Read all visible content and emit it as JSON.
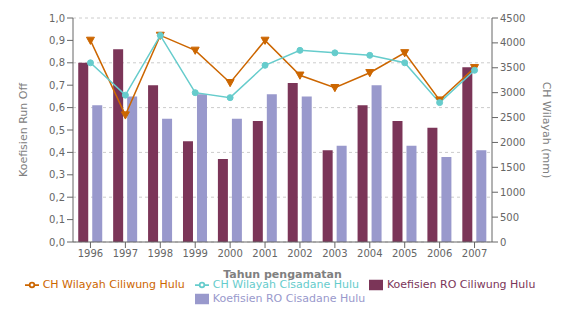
{
  "chart_data": {
    "type": "bar",
    "x_label": "Tahun pengamatan",
    "y_label": "Koefisien Run Off",
    "y2_label": "CH Wilayah (mm)",
    "categories": [
      "1996",
      "1997",
      "1998",
      "1999",
      "2000",
      "2001",
      "2002",
      "2003",
      "2004",
      "2005",
      "2006",
      "2007"
    ],
    "ylim": [
      0.0,
      1.0
    ],
    "yticks": [
      {
        "value": 0.0,
        "label": "0,0"
      },
      {
        "value": 0.1,
        "label": "0,1"
      },
      {
        "value": 0.2,
        "label": "0,2"
      },
      {
        "value": 0.3,
        "label": "0,3"
      },
      {
        "value": 0.4,
        "label": "0,4"
      },
      {
        "value": 0.5,
        "label": "0,5"
      },
      {
        "value": 0.6,
        "label": "0,6"
      },
      {
        "value": 0.7,
        "label": "0,7"
      },
      {
        "value": 0.8,
        "label": "0,8"
      },
      {
        "value": 0.9,
        "label": "0,9"
      },
      {
        "value": 1.0,
        "label": "1,0"
      }
    ],
    "y2lim": [
      0,
      4500
    ],
    "y2ticks": [
      0,
      500,
      1000,
      1500,
      2000,
      2500,
      3000,
      3500,
      4000,
      4500
    ],
    "grid": true,
    "legend": "bottom",
    "series": [
      {
        "name": "Koefisien RO Ciliwung Hulu",
        "type": "bar",
        "color": "#7b3558",
        "values": [
          0.8,
          0.86,
          0.7,
          0.45,
          0.37,
          0.54,
          0.71,
          0.41,
          0.61,
          0.54,
          0.51,
          0.78
        ]
      },
      {
        "name": "Koefisien RO Cisadane Hulu",
        "type": "bar",
        "color": "#9999cc",
        "values": [
          0.61,
          0.65,
          0.55,
          0.66,
          0.55,
          0.66,
          0.65,
          0.43,
          0.7,
          0.43,
          0.38,
          0.41
        ]
      },
      {
        "name": "CH Wilayah Ciliwung Hulu",
        "type": "line",
        "axis": "y2",
        "color": "#cc6600",
        "marker": "triangle_down",
        "values": [
          4050,
          2550,
          4150,
          3850,
          3200,
          4050,
          3350,
          3100,
          3400,
          3800,
          2850,
          3500
        ]
      },
      {
        "name": "CH Wilayah Cisadane Hulu",
        "type": "line",
        "axis": "y2",
        "color": "#66cccc",
        "marker": "circle",
        "values": [
          3600,
          2950,
          4150,
          3000,
          2900,
          3550,
          3850,
          3800,
          3750,
          3600,
          2800,
          3450
        ]
      }
    ]
  }
}
